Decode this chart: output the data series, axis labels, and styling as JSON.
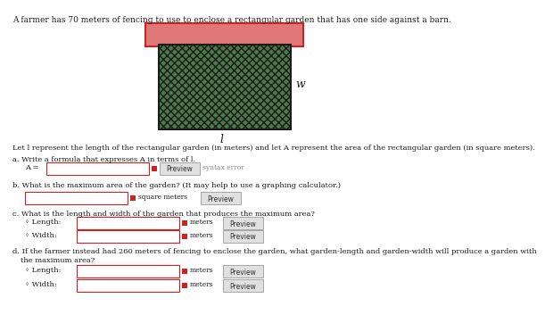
{
  "title_text": "A farmer has 70 meters of fencing to use to enclose a rectangular garden that has one side against a barn.",
  "barn_color": "#e07878",
  "barn_edge": "#cc2222",
  "garden_color": "#4a7a4a",
  "garden_edge": "#1a1a1a",
  "w_text": "w",
  "l_text": "l",
  "main_text": "Let l represent the length of the rectangular garden (in meters) and let A represent the area of the rectangular garden (in square meters).",
  "background_color": "#ffffff",
  "text_color": "#1a1a1a",
  "input_border": "#cc2222",
  "btn_face": "#e0e0e0",
  "btn_edge": "#999999",
  "red_sq": "#cc2222",
  "syntax_error_color": "#888888",
  "fontsize_title": 6.5,
  "fontsize_body": 6.0,
  "fontsize_small": 5.5
}
